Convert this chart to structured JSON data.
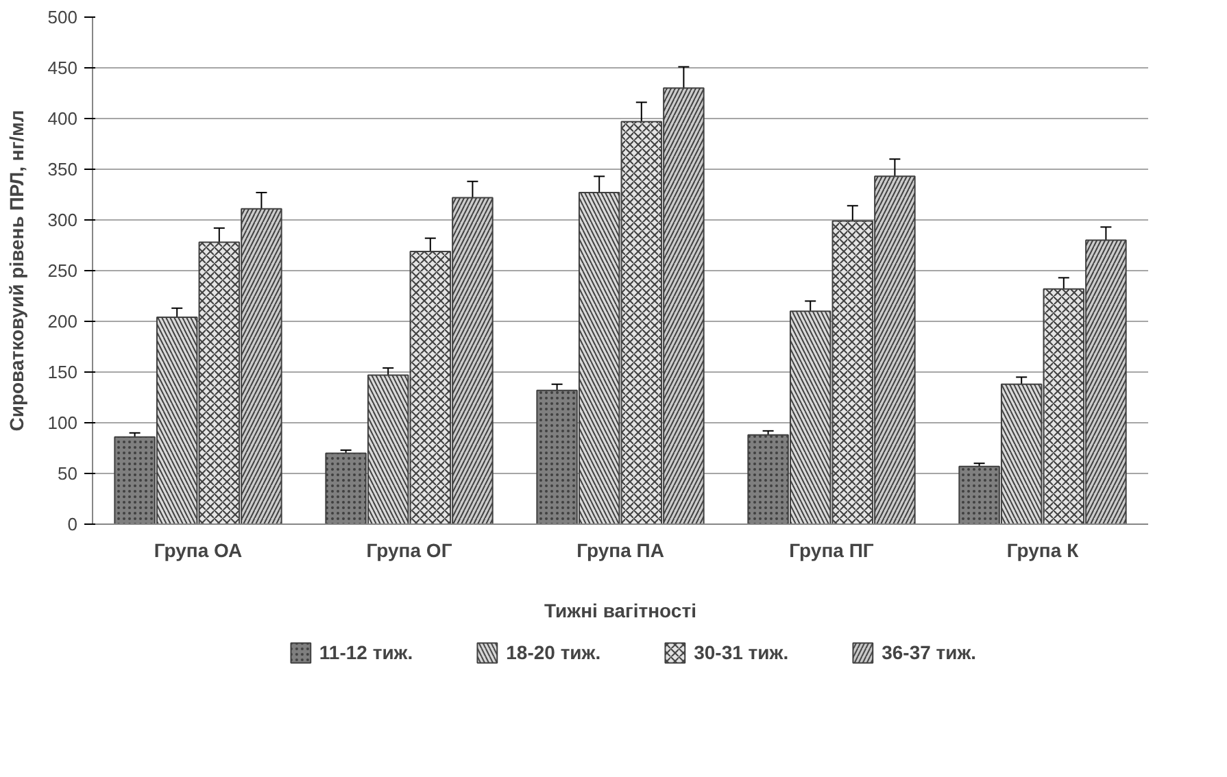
{
  "chart_data": {
    "type": "bar",
    "xlabel": "Тижні вагітності",
    "ylabel": "Сироватковуий рівень ПРЛ, нг/мл",
    "categories": [
      "Група ОА",
      "Група ОГ",
      "Група ПА",
      "Група ПГ",
      "Група К"
    ],
    "series": [
      {
        "name": "11-12 тиж.",
        "color": "#7f7f7f",
        "values": [
          86,
          70,
          132,
          88,
          57
        ],
        "errors": [
          4,
          3,
          6,
          4,
          3
        ]
      },
      {
        "name": "18-20 тиж.",
        "color": "#d9d9d9",
        "values": [
          204,
          147,
          327,
          210,
          138
        ],
        "errors": [
          9,
          7,
          16,
          10,
          7
        ]
      },
      {
        "name": "30-31 тиж.",
        "color": "#e4e4e4",
        "values": [
          278,
          269,
          397,
          299,
          232
        ],
        "errors": [
          14,
          13,
          19,
          15,
          11
        ]
      },
      {
        "name": "36-37 тиж.",
        "color": "#cccccc",
        "values": [
          311,
          322,
          430,
          343,
          280
        ],
        "errors": [
          16,
          16,
          21,
          17,
          13
        ]
      }
    ],
    "ylim": [
      0,
      500
    ],
    "yticks": [
      0,
      50,
      100,
      150,
      200,
      250,
      300,
      350,
      400,
      450,
      500
    ],
    "grid": "y",
    "legend": "bottom"
  }
}
